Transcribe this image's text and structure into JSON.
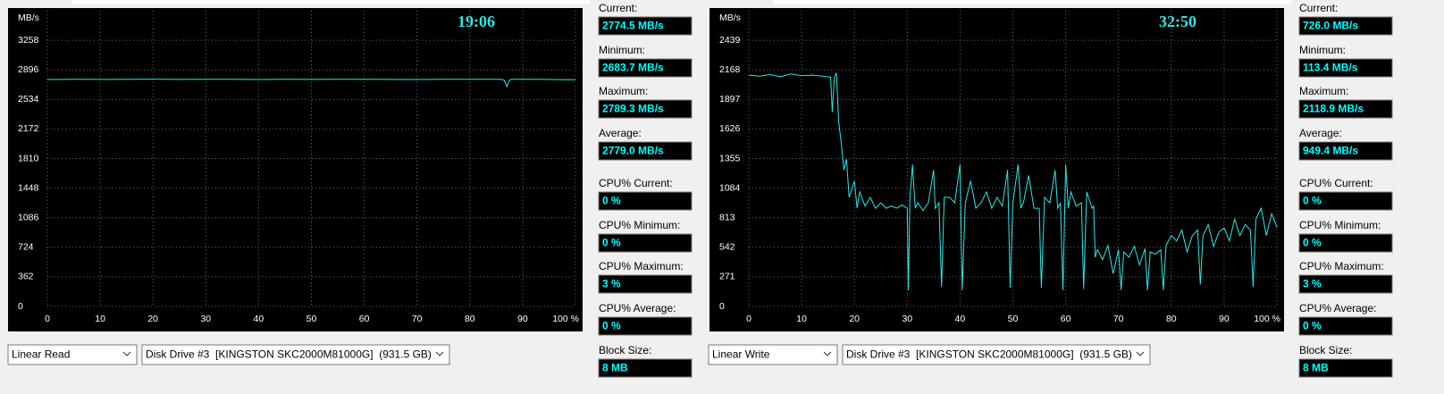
{
  "chart_data": [
    {
      "type": "line",
      "annotation": "19:06",
      "y_label": "MB/s",
      "x": [
        0,
        5,
        10,
        15,
        20,
        25,
        30,
        35,
        40,
        45,
        50,
        55,
        60,
        65,
        70,
        75,
        80,
        85,
        86,
        86.5,
        87,
        87.5,
        88,
        90,
        95,
        100
      ],
      "series": [
        {
          "color": "#2ee6e6",
          "values": [
            2778,
            2781,
            2779,
            2780,
            2782,
            2779,
            2780,
            2781,
            2778,
            2780,
            2779,
            2781,
            2780,
            2779,
            2778,
            2780,
            2781,
            2780,
            2779,
            2770,
            2690,
            2772,
            2780,
            2781,
            2779,
            2775
          ]
        }
      ],
      "xlim": [
        0,
        100
      ],
      "xticks": [
        0,
        10,
        20,
        30,
        40,
        50,
        60,
        70,
        80,
        90,
        {
          "value": 100,
          "label": "100 %"
        }
      ],
      "ylim": [
        0,
        3620
      ],
      "yticks": [
        0,
        362,
        724,
        1086,
        1448,
        1810,
        2172,
        2534,
        2896,
        3258
      ],
      "grid": true
    },
    {
      "type": "line",
      "annotation": "32:50",
      "y_label": "MB/s",
      "x": [
        0,
        2,
        4,
        6,
        8,
        10,
        12,
        14,
        15.5,
        15.8,
        16.2,
        16.6,
        17,
        17.5,
        18,
        18.5,
        19,
        20,
        20.5,
        21,
        22,
        23,
        24,
        25,
        26,
        27,
        28,
        29,
        30,
        30.2,
        30.5,
        31,
        31.5,
        32,
        33,
        34,
        35,
        35.3,
        36,
        36.5,
        37,
        38,
        39,
        40,
        40.4,
        41,
        42,
        43,
        44,
        45,
        46,
        47,
        48,
        49,
        49.5,
        50,
        51,
        51.5,
        52,
        53,
        54,
        55,
        55.4,
        56,
        57,
        58,
        58.5,
        59,
        59.5,
        60,
        60.5,
        61,
        62,
        63,
        63.4,
        64,
        65,
        65.3,
        65.6,
        66,
        67,
        68,
        69,
        70,
        70.5,
        71,
        72,
        73,
        74,
        75,
        75.5,
        76,
        77,
        78,
        78.5,
        79,
        80,
        81,
        82,
        83,
        84,
        85,
        85.5,
        86,
        87,
        88,
        89,
        90,
        91,
        92,
        93,
        94,
        95,
        95.5,
        96,
        97,
        98,
        99,
        100
      ],
      "series": [
        {
          "color": "#2ee6e6",
          "values": [
            2120,
            2110,
            2125,
            2105,
            2130,
            2115,
            2120,
            2110,
            2100,
            1780,
            2100,
            2140,
            1700,
            1500,
            1250,
            1350,
            1000,
            1150,
            900,
            1050,
            920,
            1000,
            900,
            950,
            900,
            920,
            900,
            930,
            900,
            150,
            1000,
            1300,
            900,
            950,
            880,
            950,
            1250,
            900,
            950,
            180,
            1000,
            1000,
            950,
            1300,
            150,
            950,
            1150,
            900,
            950,
            1050,
            900,
            1000,
            920,
            1250,
            170,
            950,
            1300,
            900,
            950,
            1200,
            900,
            900,
            170,
            1000,
            950,
            1250,
            900,
            950,
            150,
            1300,
            900,
            1050,
            920,
            950,
            160,
            1050,
            900,
            920,
            450,
            520,
            430,
            560,
            300,
            520,
            150,
            500,
            450,
            550,
            380,
            530,
            150,
            500,
            480,
            520,
            150,
            560,
            650,
            600,
            700,
            500,
            650,
            700,
            200,
            650,
            750,
            550,
            680,
            720,
            600,
            800,
            650,
            750,
            700,
            180,
            800,
            900,
            650,
            850,
            726
          ]
        }
      ],
      "xlim": [
        0,
        100
      ],
      "xticks": [
        0,
        10,
        20,
        30,
        40,
        50,
        60,
        70,
        80,
        90,
        {
          "value": 100,
          "label": "100 %"
        }
      ],
      "ylim": [
        0,
        2710
      ],
      "yticks": [
        0,
        271,
        542,
        813,
        1084,
        1355,
        1626,
        1897,
        2168,
        2439
      ],
      "grid": true
    }
  ],
  "panels": [
    {
      "stats": [
        {
          "label": "Current:",
          "value": "2774.5 MB/s"
        },
        {
          "label": "Minimum:",
          "value": "2683.7 MB/s"
        },
        {
          "label": "Maximum:",
          "value": "2789.3 MB/s"
        },
        {
          "label": "Average:",
          "value": "2779.0 MB/s"
        },
        {
          "label": "CPU% Current:",
          "value": "0 %"
        },
        {
          "label": "CPU% Minimum:",
          "value": "0 %"
        },
        {
          "label": "CPU% Maximum:",
          "value": "3 %"
        },
        {
          "label": "CPU% Average:",
          "value": "0 %"
        },
        {
          "label": "Block Size:",
          "value": "8 MB"
        }
      ],
      "test": "Linear Read",
      "drive": "Disk Drive #3  [KINGSTON SKC2000M81000G]  (931.5 GB)"
    },
    {
      "stats": [
        {
          "label": "Current:",
          "value": "726.0 MB/s"
        },
        {
          "label": "Minimum:",
          "value": "113.4 MB/s"
        },
        {
          "label": "Maximum:",
          "value": "2118.9 MB/s"
        },
        {
          "label": "Average:",
          "value": "949.4 MB/s"
        },
        {
          "label": "CPU% Current:",
          "value": "0 %"
        },
        {
          "label": "CPU% Minimum:",
          "value": "0 %"
        },
        {
          "label": "CPU% Maximum:",
          "value": "3 %"
        },
        {
          "label": "CPU% Average:",
          "value": "0 %"
        },
        {
          "label": "Block Size:",
          "value": "8 MB"
        }
      ],
      "test": "Linear Write",
      "drive": "Disk Drive #3  [KINGSTON SKC2000M81000G]  (931.5 GB)"
    }
  ]
}
